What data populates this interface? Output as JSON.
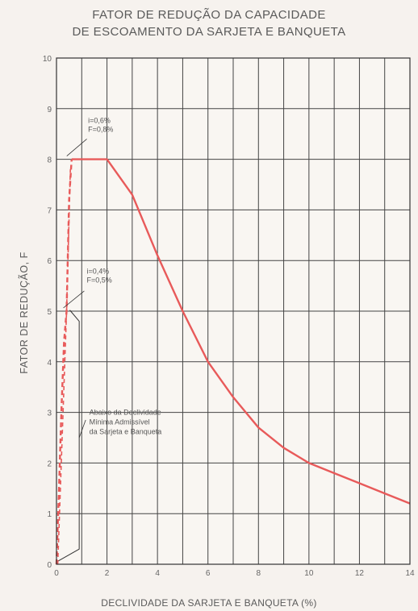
{
  "chart_data": {
    "type": "line",
    "title": "FATOR DE REDUÇÃO DA CAPACIDADE DE ESCOAMENTO DA SARJETA E BANQUETA",
    "title_lines": [
      "FATOR DE REDUÇÃO DA CAPACIDADE",
      "DE ESCOAMENTO DA SARJETA E BANQUETA"
    ],
    "xlabel": "DECLIVIDADE DA SARJETA E BANQUETA (%)",
    "ylabel": "FATOR DE REDUÇÃO, F",
    "xlim": [
      0,
      14
    ],
    "ylim": [
      0,
      10
    ],
    "xticks": [
      0,
      2,
      4,
      6,
      8,
      10,
      12,
      14
    ],
    "yticks": [
      0,
      1,
      2,
      3,
      4,
      5,
      6,
      7,
      8,
      9,
      10
    ],
    "x_grid_step": 1,
    "y_grid_step": 1,
    "grid": true,
    "series": [
      {
        "style": "solid",
        "color": "#e85a5a",
        "x": [
          0.6,
          2,
          3,
          4,
          5,
          6,
          7,
          8,
          9,
          10,
          11,
          12,
          13,
          14
        ],
        "y": [
          8,
          8,
          7.3,
          6.1,
          5.0,
          4.0,
          3.3,
          2.7,
          2.3,
          2.0,
          1.8,
          1.6,
          1.4,
          1.2
        ]
      },
      {
        "style": "dashed",
        "color": "#e85a5a",
        "x": [
          0,
          0.1,
          0.2,
          0.3,
          0.4,
          0.5,
          0.6
        ],
        "y": [
          0,
          1.5,
          3.1,
          4.4,
          5.0,
          7.2,
          8.0
        ]
      }
    ],
    "annotations": [
      {
        "lines": [
          "i=0,6%",
          "F=0,8%"
        ],
        "x": 0.6,
        "y": 8
      },
      {
        "lines": [
          "i=0,4%",
          "F=0,5%"
        ],
        "x": 0.4,
        "y": 5
      },
      {
        "lines": [
          "Abaixo da Declividade",
          "Mínima Admissível",
          "da Sarjeta e Banqueta"
        ],
        "x": 0.9,
        "y": 2.5
      }
    ],
    "colors": {
      "curve": "#e85a5a",
      "grid": "#444444",
      "background": "#f6f2ee"
    }
  }
}
